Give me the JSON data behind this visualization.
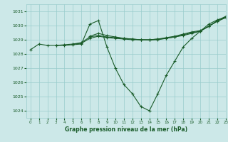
{
  "title": "Graphe pression niveau de la mer (hPa)",
  "bg_color": "#cce8e8",
  "grid_color": "#99cccc",
  "line_color": "#1a5c2a",
  "xlim": [
    -0.5,
    23
  ],
  "ylim": [
    1023.5,
    1031.5
  ],
  "yticks": [
    1024,
    1025,
    1026,
    1027,
    1028,
    1029,
    1030,
    1031
  ],
  "xticks": [
    0,
    1,
    2,
    3,
    4,
    5,
    6,
    7,
    8,
    9,
    10,
    11,
    12,
    13,
    14,
    15,
    16,
    17,
    18,
    19,
    20,
    21,
    22,
    23
  ],
  "series": [
    {
      "x": [
        0,
        1,
        2,
        3,
        4,
        5,
        6,
        7,
        8,
        9,
        10,
        11,
        12,
        13,
        14,
        15,
        16,
        17,
        18,
        19,
        20,
        21,
        22,
        23
      ],
      "y": [
        1028.3,
        1028.7,
        1028.6,
        1028.6,
        1028.6,
        1028.65,
        1028.7,
        1030.1,
        1030.35,
        1028.5,
        1027.0,
        1025.85,
        1025.2,
        1024.3,
        1024.0,
        1025.2,
        1026.5,
        1027.5,
        1028.5,
        1029.1,
        1029.6,
        1030.1,
        1030.4,
        1030.6
      ]
    },
    {
      "x": [
        3,
        4,
        5,
        6,
        7,
        8,
        9,
        10,
        11,
        12,
        13,
        14,
        15,
        16,
        17,
        18,
        19,
        20,
        21,
        22,
        23
      ],
      "y": [
        1028.6,
        1028.65,
        1028.7,
        1028.75,
        1029.1,
        1029.25,
        1029.15,
        1029.1,
        1029.05,
        1029.0,
        1029.0,
        1029.0,
        1029.05,
        1029.1,
        1029.2,
        1029.3,
        1029.45,
        1029.6,
        1029.95,
        1030.3,
        1030.55
      ]
    },
    {
      "x": [
        5,
        6,
        7,
        8,
        9,
        10,
        11,
        12,
        13,
        14,
        15,
        16,
        17,
        18,
        19,
        20,
        21,
        22,
        23
      ],
      "y": [
        1028.7,
        1028.8,
        1029.2,
        1029.3,
        1029.2,
        1029.15,
        1029.1,
        1029.05,
        1029.0,
        1029.0,
        1029.05,
        1029.15,
        1029.25,
        1029.4,
        1029.55,
        1029.65,
        1029.95,
        1030.3,
        1030.6
      ]
    },
    {
      "x": [
        7,
        8,
        9,
        10,
        11,
        12,
        13,
        14,
        15,
        16,
        17,
        18,
        19,
        20,
        21,
        22,
        23
      ],
      "y": [
        1029.25,
        1029.45,
        1029.3,
        1029.2,
        1029.1,
        1029.05,
        1029.0,
        1028.98,
        1029.0,
        1029.1,
        1029.2,
        1029.35,
        1029.5,
        1029.6,
        1029.95,
        1030.35,
        1030.65
      ]
    }
  ]
}
